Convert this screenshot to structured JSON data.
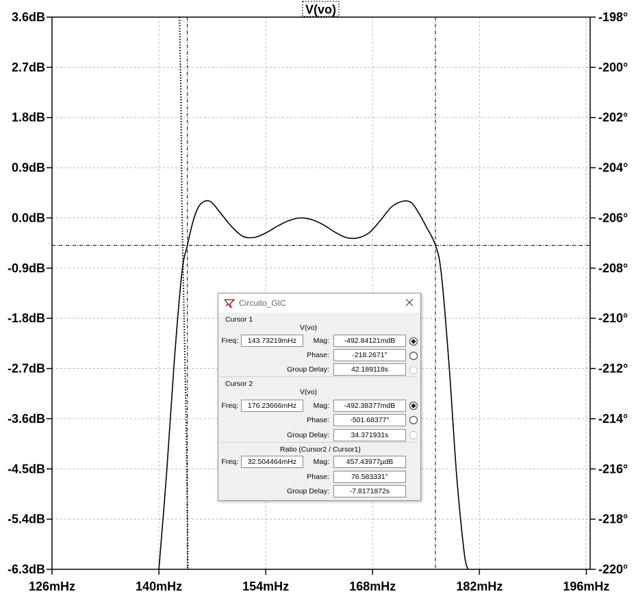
{
  "chart_data": {
    "type": "line",
    "title": "V(vo)",
    "x_ticks": [
      "126mHz",
      "140mHz",
      "154mHz",
      "168mHz",
      "182mHz",
      "196mHz"
    ],
    "x_tick_values": [
      126,
      140,
      154,
      168,
      182,
      196
    ],
    "x_unit": "mHz",
    "xlim": [
      126,
      196.5
    ],
    "y_ticks": [
      "3.6dB",
      "2.7dB",
      "1.8dB",
      "0.9dB",
      "0.0dB",
      "-0.9dB",
      "-1.8dB",
      "-2.7dB",
      "-3.6dB",
      "-4.5dB",
      "-5.4dB",
      "-6.3dB"
    ],
    "y_tick_values": [
      3.6,
      2.7,
      1.8,
      0.9,
      0.0,
      -0.9,
      -1.8,
      -2.7,
      -3.6,
      -4.5,
      -5.4,
      -6.3
    ],
    "ylim": [
      -6.3,
      3.6
    ],
    "y2_ticks": [
      "-198°",
      "-200°",
      "-202°",
      "-204°",
      "-206°",
      "-208°",
      "-210°",
      "-212°",
      "-214°",
      "-216°",
      "-218°",
      "-220°"
    ],
    "y2_tick_values": [
      -198,
      -200,
      -202,
      -204,
      -206,
      -208,
      -210,
      -212,
      -214,
      -216,
      -218,
      -220
    ],
    "y2lim": [
      -220,
      -198
    ],
    "grid": true,
    "series": [
      {
        "name": "V(vo)",
        "style": "solid",
        "x": [
          140.0,
          141.0,
          142.0,
          143.0,
          143.73,
          144.5,
          145.2,
          146.0,
          146.9,
          148.0,
          149.5,
          151.0,
          152.5,
          154.0,
          155.5,
          157.0,
          158.5,
          160.0,
          161.5,
          163.0,
          164.5,
          166.0,
          167.5,
          169.0,
          170.5,
          172.0,
          173.1,
          174.0,
          175.0,
          176.24,
          177.0,
          178.0,
          179.0,
          180.0,
          180.5
        ],
        "y": [
          -6.3,
          -4.6,
          -2.6,
          -1.0,
          -0.49,
          -0.05,
          0.2,
          0.3,
          0.28,
          0.1,
          -0.15,
          -0.33,
          -0.35,
          -0.27,
          -0.15,
          -0.05,
          0.0,
          -0.03,
          -0.12,
          -0.25,
          -0.35,
          -0.36,
          -0.27,
          -0.05,
          0.2,
          0.3,
          0.27,
          0.1,
          -0.15,
          -0.49,
          -1.0,
          -2.6,
          -4.6,
          -6.0,
          -6.3
        ]
      },
      {
        "name": "",
        "style": "dotted",
        "x": [
          142.7,
          142.9,
          143.0,
          143.2,
          143.5,
          143.7,
          143.8
        ],
        "y": [
          -198.0,
          -201.5,
          -205.0,
          -208.5,
          -213.0,
          -217.0,
          -220.0
        ],
        "axis": "right"
      }
    ],
    "cursors": {
      "x": [
        143.73219,
        176.23666
      ],
      "y": -0.492
    }
  },
  "dialog": {
    "title": "Circuito_GIC",
    "cursor1": {
      "title": "Cursor 1",
      "signal": "V(vo)",
      "freq_label": "Freq:",
      "freq": "143.73219mHz",
      "mag_label": "Mag:",
      "mag": "-492.84121mdB",
      "phase_label": "Phase:",
      "phase": "-218.2671°",
      "gd_label": "Group Delay:",
      "gd": "42.189118s"
    },
    "cursor2": {
      "title": "Cursor 2",
      "signal": "V(vo)",
      "freq_label": "Freq:",
      "freq": "176.23666mHz",
      "mag_label": "Mag:",
      "mag": "-492.38377mdB",
      "phase_label": "Phase:",
      "phase": "-501.68377°",
      "gd_label": "Group Delay:",
      "gd": "34.371931s"
    },
    "ratio": {
      "title": "Ratio (Cursor2 / Cursor1)",
      "freq_label": "Freq:",
      "freq": "32.504464mHz",
      "mag_label": "Mag:",
      "mag": "457.43977µdB",
      "phase_label": "Phase:",
      "phase": "76.583331°",
      "gd_label": "Group Delay:",
      "gd": "-7.8171872s"
    }
  }
}
